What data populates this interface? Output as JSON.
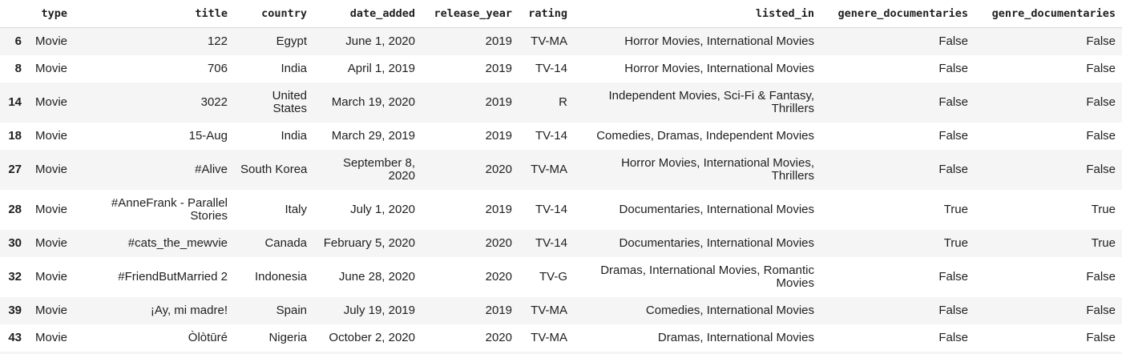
{
  "table": {
    "columns": [
      {
        "key": "index",
        "label": ""
      },
      {
        "key": "type",
        "label": "type"
      },
      {
        "key": "title",
        "label": "title"
      },
      {
        "key": "country",
        "label": "country"
      },
      {
        "key": "date_added",
        "label": "date_added"
      },
      {
        "key": "release_year",
        "label": "release_year"
      },
      {
        "key": "rating",
        "label": "rating"
      },
      {
        "key": "listed_in",
        "label": "listed_in"
      },
      {
        "key": "genere_documentaries",
        "label": "genere_documentaries"
      },
      {
        "key": "genre_documentaries",
        "label": "genre_documentaries"
      }
    ],
    "rows": [
      {
        "index": "6",
        "type": "Movie",
        "title": "122",
        "country": "Egypt",
        "date_added": "June 1, 2020",
        "release_year": "2019",
        "rating": "TV-MA",
        "listed_in": "Horror Movies, International Movies",
        "genere_documentaries": "False",
        "genre_documentaries": "False"
      },
      {
        "index": "8",
        "type": "Movie",
        "title": "706",
        "country": "India",
        "date_added": "April 1, 2019",
        "release_year": "2019",
        "rating": "TV-14",
        "listed_in": "Horror Movies, International Movies",
        "genere_documentaries": "False",
        "genre_documentaries": "False"
      },
      {
        "index": "14",
        "type": "Movie",
        "title": "3022",
        "country": "United\nStates",
        "date_added": "March 19, 2020",
        "release_year": "2019",
        "rating": "R",
        "listed_in": "Independent Movies, Sci-Fi & Fantasy,\nThrillers",
        "genere_documentaries": "False",
        "genre_documentaries": "False"
      },
      {
        "index": "18",
        "type": "Movie",
        "title": "15-Aug",
        "country": "India",
        "date_added": "March 29, 2019",
        "release_year": "2019",
        "rating": "TV-14",
        "listed_in": "Comedies, Dramas, Independent Movies",
        "genere_documentaries": "False",
        "genre_documentaries": "False"
      },
      {
        "index": "27",
        "type": "Movie",
        "title": "#Alive",
        "country": "South Korea",
        "date_added": "September 8,\n2020",
        "release_year": "2020",
        "rating": "TV-MA",
        "listed_in": "Horror Movies, International Movies,\nThrillers",
        "genere_documentaries": "False",
        "genre_documentaries": "False"
      },
      {
        "index": "28",
        "type": "Movie",
        "title": "#AnneFrank - Parallel\nStories",
        "country": "Italy",
        "date_added": "July 1, 2020",
        "release_year": "2019",
        "rating": "TV-14",
        "listed_in": "Documentaries, International Movies",
        "genere_documentaries": "True",
        "genre_documentaries": "True"
      },
      {
        "index": "30",
        "type": "Movie",
        "title": "#cats_the_mewvie",
        "country": "Canada",
        "date_added": "February 5, 2020",
        "release_year": "2020",
        "rating": "TV-14",
        "listed_in": "Documentaries, International Movies",
        "genere_documentaries": "True",
        "genre_documentaries": "True"
      },
      {
        "index": "32",
        "type": "Movie",
        "title": "#FriendButMarried 2",
        "country": "Indonesia",
        "date_added": "June 28, 2020",
        "release_year": "2020",
        "rating": "TV-G",
        "listed_in": "Dramas, International Movies, Romantic\nMovies",
        "genere_documentaries": "False",
        "genre_documentaries": "False"
      },
      {
        "index": "39",
        "type": "Movie",
        "title": "¡Ay, mi madre!",
        "country": "Spain",
        "date_added": "July 19, 2019",
        "release_year": "2019",
        "rating": "TV-MA",
        "listed_in": "Comedies, International Movies",
        "genere_documentaries": "False",
        "genre_documentaries": "False"
      },
      {
        "index": "43",
        "type": "Movie",
        "title": "Òlòtūré",
        "country": "Nigeria",
        "date_added": "October 2, 2020",
        "release_year": "2020",
        "rating": "TV-MA",
        "listed_in": "Dramas, International Movies",
        "genere_documentaries": "False",
        "genre_documentaries": "False"
      }
    ]
  },
  "colors": {
    "row_stripe": "#f5f5f5",
    "header_border": "#d9d9d9",
    "text": "#1f1f1f",
    "background": "#ffffff"
  }
}
